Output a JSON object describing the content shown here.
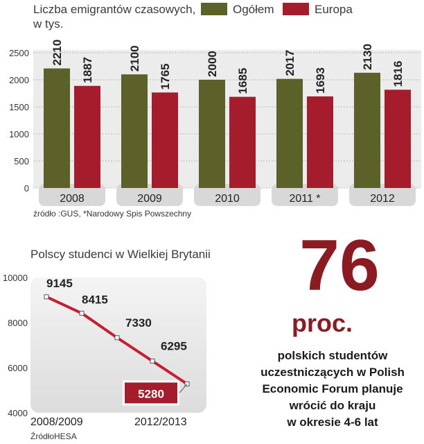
{
  "chart_data": [
    {
      "type": "bar",
      "title": "Liczba emigrantów czasowych,",
      "subtitle": "w tys.",
      "categories": [
        "2008",
        "2009",
        "2010",
        "2011 *",
        "2012"
      ],
      "series": [
        {
          "name": "Ogółem",
          "values": [
            2210,
            2100,
            2000,
            2017,
            2130
          ],
          "color": "#5b6128"
        },
        {
          "name": "Europa",
          "values": [
            1887,
            1765,
            1685,
            1693,
            1816
          ],
          "color": "#a51c2c"
        }
      ],
      "yticks": [
        0,
        500,
        1000,
        1500,
        2000,
        2500
      ],
      "ylim": [
        0,
        2500
      ],
      "legend_position": "top",
      "grid": true,
      "source": "źródło :GUS, *Narodowy Spis Powszechny"
    },
    {
      "type": "line",
      "title": "Polscy studenci w Wielkiej Brytanii",
      "series": [
        {
          "values": [
            9145,
            8415,
            7330,
            6295,
            5280
          ],
          "color": "#c41e33"
        }
      ],
      "value_labels": [
        "9145",
        "8415",
        "7330",
        "6295",
        "5280"
      ],
      "x_labels": [
        "2008/2009",
        "2012/2013"
      ],
      "yticks": [
        4000,
        6000,
        8000,
        10000
      ],
      "ylim": [
        4000,
        10000
      ],
      "highlight_last": true,
      "source": "ŹródłoHESA"
    }
  ],
  "callout": {
    "number": "76",
    "unit": "proc.",
    "lines": [
      "polskich studentów",
      "uczestniczących w Polish",
      "Economic Forum planuje",
      "wrócić do kraju",
      "w okresie 4-6 lat"
    ],
    "color": "#8a1b22"
  }
}
